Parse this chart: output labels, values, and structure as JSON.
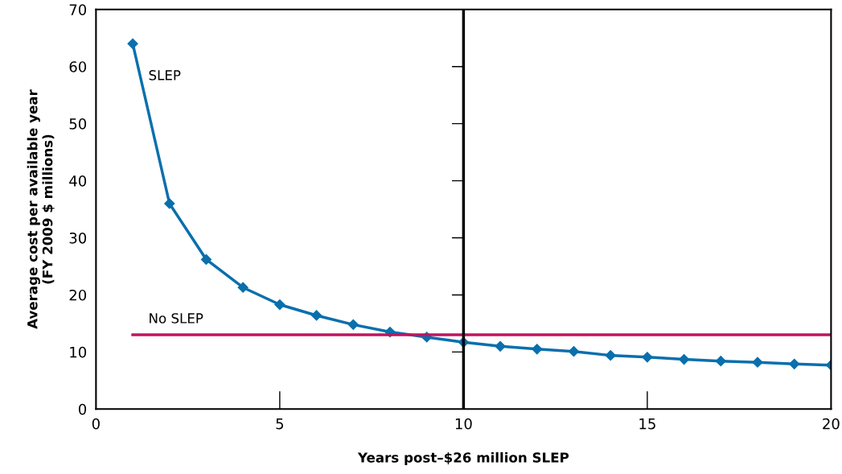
{
  "chart_data": {
    "type": "line",
    "xlabel": "Years post–$26 million SLEP",
    "ylabel": "Average cost per available year\n(FY 2009 $ millions)",
    "xlim": [
      0,
      20
    ],
    "xticks": [
      0,
      5,
      10,
      15,
      20
    ],
    "ylim": [
      0,
      70
    ],
    "yticks": [
      0,
      10,
      20,
      30,
      40,
      50,
      60,
      70
    ],
    "grid": false,
    "legend": false,
    "series": [
      {
        "name": "SLEP",
        "color": "#0a6fad",
        "marker": "diamond",
        "x": [
          1,
          2,
          3,
          4,
          5,
          6,
          7,
          8,
          9,
          10,
          11,
          12,
          13,
          14,
          15,
          16,
          17,
          18,
          19,
          20
        ],
        "values": [
          64,
          36,
          26.2,
          21.3,
          18.3,
          16.4,
          14.8,
          13.5,
          12.6,
          11.7,
          11.0,
          10.5,
          10.1,
          9.4,
          9.1,
          8.7,
          8.4,
          8.2,
          7.9,
          7.7
        ]
      },
      {
        "name": "No SLEP",
        "color": "#c0135f",
        "marker": "none",
        "x": [
          1,
          20
        ],
        "values": [
          13,
          13
        ]
      }
    ],
    "ref_lines": [
      {
        "axis": "x",
        "value": 10,
        "label": null,
        "color": "#000000"
      }
    ]
  }
}
